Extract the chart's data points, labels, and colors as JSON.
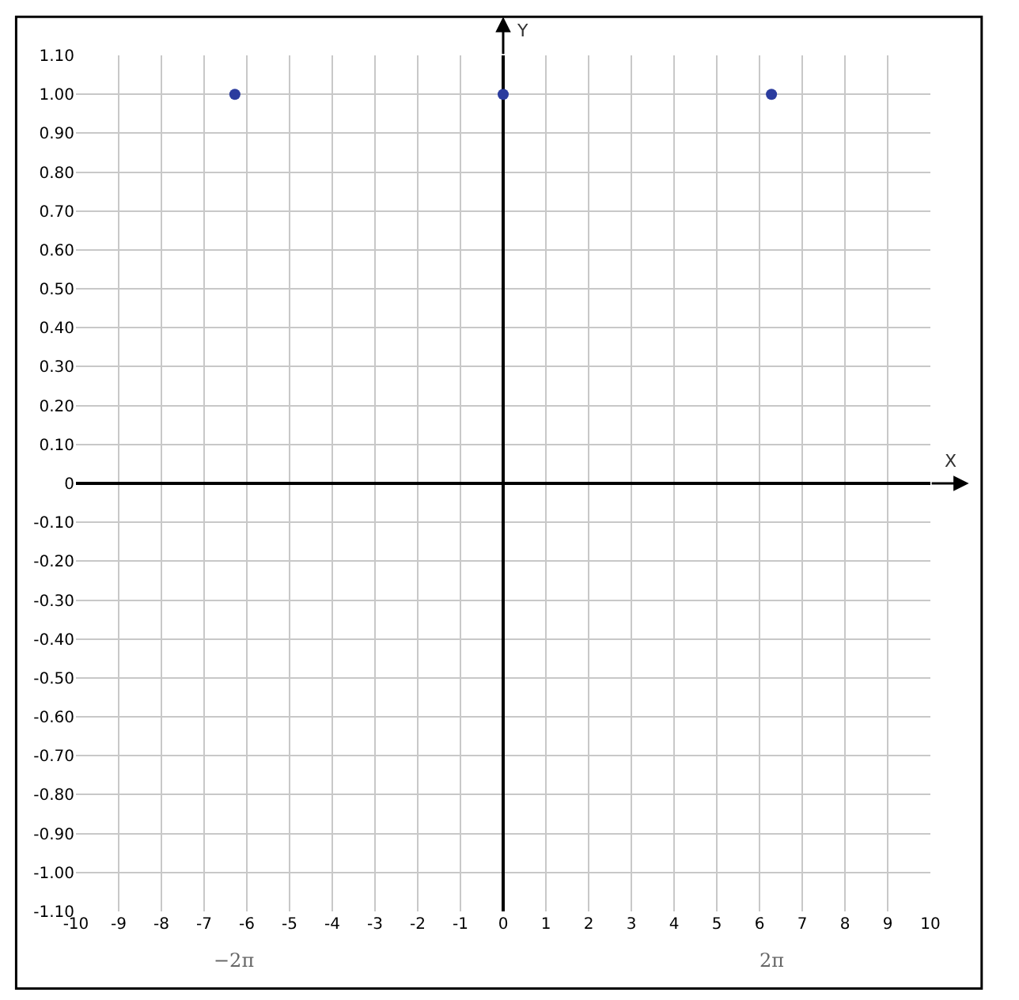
{
  "chart_data": {
    "type": "scatter",
    "xlabel": "X",
    "ylabel": "Y",
    "x": [
      -6.28,
      0,
      6.28
    ],
    "series": [
      {
        "color": "#2b3c9e",
        "values": [
          1,
          1,
          1
        ]
      }
    ],
    "marker": "circle",
    "grid": true,
    "xlim": [
      -10,
      10
    ],
    "xticks": [
      -10,
      -9,
      -8,
      -7,
      -6,
      -5,
      -4,
      -3,
      -2,
      -1,
      0,
      1,
      2,
      3,
      4,
      5,
      6,
      7,
      8,
      9,
      10
    ],
    "ylim": [
      -1.1,
      1.1
    ],
    "yticks": [
      {
        "value": 1.1,
        "label": "1.10"
      },
      {
        "value": 1.0,
        "label": "1.00"
      },
      {
        "value": 0.9,
        "label": "0.90"
      },
      {
        "value": 0.8,
        "label": "0.80"
      },
      {
        "value": 0.7,
        "label": "0.70"
      },
      {
        "value": 0.6,
        "label": "0.60"
      },
      {
        "value": 0.5,
        "label": "0.50"
      },
      {
        "value": 0.4,
        "label": "0.40"
      },
      {
        "value": 0.3,
        "label": "0.30"
      },
      {
        "value": 0.2,
        "label": "0.20"
      },
      {
        "value": 0.1,
        "label": "0.10"
      },
      0,
      {
        "value": -0.1,
        "label": "-0.10"
      },
      {
        "value": -0.2,
        "label": "-0.20"
      },
      {
        "value": -0.3,
        "label": "-0.30"
      },
      {
        "value": -0.4,
        "label": "-0.40"
      },
      {
        "value": -0.5,
        "label": "-0.50"
      },
      {
        "value": -0.6,
        "label": "-0.60"
      },
      {
        "value": -0.7,
        "label": "-0.70"
      },
      {
        "value": -0.8,
        "label": "-0.80"
      },
      {
        "value": -0.9,
        "label": "-0.90"
      },
      {
        "value": -1.0,
        "label": "-1.00"
      },
      {
        "value": -1.1,
        "label": "-1.10"
      }
    ],
    "annotations": [
      "−2π",
      "2π"
    ]
  }
}
